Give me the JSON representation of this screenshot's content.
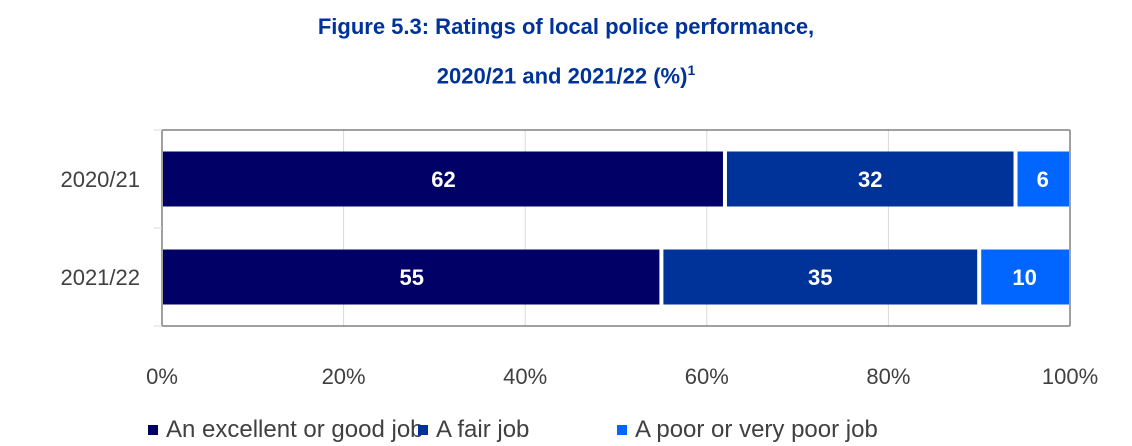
{
  "title_line1": "Figure 5.3: Ratings of local police performance,",
  "title_line2": "2020/21 and 2021/22 (%)",
  "title_sup": "1",
  "chart_data": {
    "type": "bar",
    "orientation": "horizontal",
    "stacked": true,
    "categories": [
      "2020/21",
      "2021/22"
    ],
    "series": [
      {
        "name": "An excellent or good job",
        "values": [
          62,
          55
        ],
        "color": "#000066"
      },
      {
        "name": "A fair job",
        "values": [
          32,
          35
        ],
        "color": "#003399"
      },
      {
        "name": "A poor or very poor job",
        "values": [
          6,
          10
        ],
        "color": "#0066FF"
      }
    ],
    "xlim": [
      0,
      100
    ],
    "xticks": [
      "0%",
      "20%",
      "40%",
      "60%",
      "80%",
      "100%"
    ],
    "grid": true,
    "legend_position": "bottom"
  }
}
